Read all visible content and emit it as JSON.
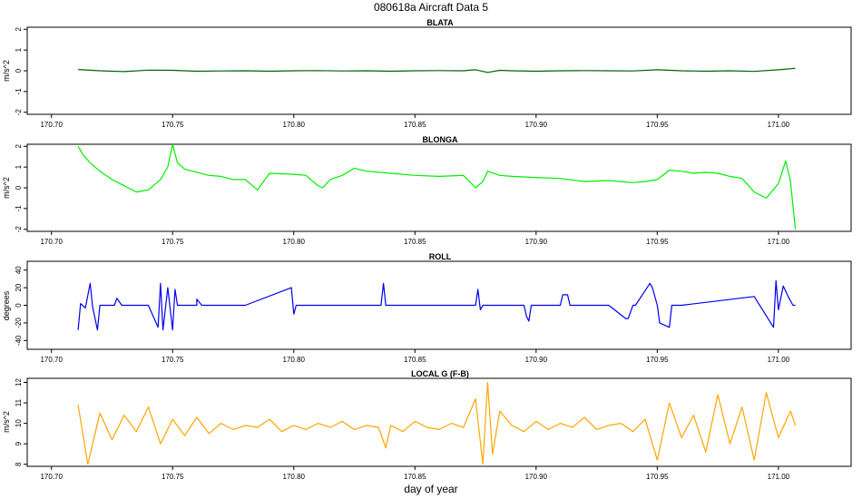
{
  "figure_title": "080618a   Aircraft Data 5",
  "xlabel": "day of year",
  "chart_data": [
    {
      "type": "line",
      "title": "BLATA",
      "ylabel": "m/s^2",
      "color": "#006400",
      "xlim": [
        170.69,
        171.03
      ],
      "ylim": [
        -2.1,
        2.1
      ],
      "xticks": [
        170.7,
        170.75,
        170.8,
        170.85,
        170.9,
        170.95,
        171.0
      ],
      "xtick_labels": [
        "170.70",
        "170.75",
        "170.80",
        "170.85",
        "170.90",
        "170.95",
        "171.00"
      ],
      "yticks": [
        -2,
        -1,
        0,
        1,
        2
      ],
      "ytick_labels": [
        "-2",
        "-1",
        "0",
        "1",
        "2"
      ],
      "series": [
        {
          "x": [
            170.711,
            170.72,
            170.73,
            170.74,
            170.75,
            170.76,
            170.77,
            170.78,
            170.79,
            170.8,
            170.81,
            170.82,
            170.83,
            170.84,
            170.85,
            170.86,
            170.87,
            170.875,
            170.88,
            170.885,
            170.89,
            170.9,
            170.91,
            170.92,
            170.93,
            170.94,
            170.95,
            170.96,
            170.97,
            170.98,
            170.99,
            171.0,
            171.007
          ],
          "y": [
            0.06,
            0.0,
            -0.04,
            0.03,
            0.02,
            -0.02,
            -0.01,
            0.0,
            -0.02,
            0.0,
            0.01,
            -0.01,
            0.0,
            -0.02,
            0.0,
            0.01,
            0.0,
            0.05,
            -0.08,
            0.02,
            0.0,
            -0.02,
            0.0,
            0.01,
            0.0,
            -0.01,
            0.05,
            0.0,
            -0.02,
            0.0,
            -0.03,
            0.05,
            0.12
          ]
        }
      ]
    },
    {
      "type": "line",
      "title": "BLONGA",
      "ylabel": "m/s^2",
      "color": "#00ee00",
      "xlim": [
        170.69,
        171.03
      ],
      "ylim": [
        -2.1,
        2.1
      ],
      "xticks": [
        170.7,
        170.75,
        170.8,
        170.85,
        170.9,
        170.95,
        171.0
      ],
      "xtick_labels": [
        "170.70",
        "170.75",
        "170.80",
        "170.85",
        "170.90",
        "170.95",
        "171.00"
      ],
      "yticks": [
        -2,
        -1,
        0,
        1,
        2
      ],
      "ytick_labels": [
        "-2",
        "-1",
        "0",
        "1",
        "2"
      ],
      "series": [
        {
          "x": [
            170.711,
            170.713,
            170.716,
            170.72,
            170.725,
            170.73,
            170.735,
            170.74,
            170.745,
            170.748,
            170.75,
            170.752,
            170.755,
            170.76,
            170.765,
            170.77,
            170.775,
            170.78,
            170.785,
            170.79,
            170.8,
            170.805,
            170.81,
            170.812,
            170.815,
            170.82,
            170.825,
            170.83,
            170.84,
            170.85,
            170.86,
            170.87,
            170.875,
            170.878,
            170.88,
            170.885,
            170.89,
            170.9,
            170.91,
            170.92,
            170.93,
            170.94,
            170.945,
            170.95,
            170.955,
            170.96,
            170.965,
            170.97,
            170.975,
            170.98,
            170.985,
            170.99,
            170.995,
            171.0,
            171.003,
            171.005,
            171.007
          ],
          "y": [
            2.0,
            1.6,
            1.2,
            0.8,
            0.4,
            0.1,
            -0.2,
            -0.1,
            0.4,
            1.0,
            2.1,
            1.2,
            0.9,
            0.75,
            0.6,
            0.55,
            0.4,
            0.4,
            -0.1,
            0.7,
            0.65,
            0.6,
            0.1,
            0.0,
            0.4,
            0.6,
            0.95,
            0.8,
            0.7,
            0.6,
            0.55,
            0.6,
            0.0,
            0.3,
            0.8,
            0.6,
            0.55,
            0.5,
            0.45,
            0.3,
            0.35,
            0.25,
            0.3,
            0.4,
            0.85,
            0.8,
            0.7,
            0.75,
            0.7,
            0.55,
            0.45,
            -0.2,
            -0.5,
            0.2,
            1.3,
            0.3,
            -2.0
          ]
        }
      ]
    },
    {
      "type": "line",
      "title": "ROLL",
      "ylabel": "degrees",
      "color": "#0000ee",
      "xlim": [
        170.69,
        171.03
      ],
      "ylim": [
        -50,
        50
      ],
      "xticks": [
        170.7,
        170.75,
        170.8,
        170.85,
        170.9,
        170.95,
        171.0
      ],
      "xtick_labels": [
        "170.70",
        "170.75",
        "170.80",
        "170.85",
        "170.90",
        "170.95",
        "171.00"
      ],
      "yticks": [
        -40,
        -20,
        0,
        20,
        40
      ],
      "ytick_labels": [
        "-40",
        "-20",
        "0",
        "20",
        "40"
      ],
      "series": [
        {
          "x": [
            170.711,
            170.712,
            170.714,
            170.716,
            170.717,
            170.719,
            170.72,
            170.726,
            170.727,
            170.729,
            170.74,
            170.744,
            170.745,
            170.746,
            170.748,
            170.75,
            170.751,
            170.752,
            170.76,
            170.76,
            170.762,
            170.78,
            170.799,
            170.8,
            170.801,
            170.81,
            170.836,
            170.837,
            170.838,
            170.85,
            170.875,
            170.876,
            170.877,
            170.878,
            170.895,
            170.896,
            170.897,
            170.898,
            170.91,
            170.911,
            170.913,
            170.914,
            170.915,
            170.93,
            170.937,
            170.938,
            170.94,
            170.941,
            170.947,
            170.948,
            170.95,
            170.951,
            170.955,
            170.956,
            170.958,
            170.96,
            170.99,
            170.998,
            170.999,
            171.0,
            171.002,
            171.004,
            171.006,
            171.007
          ],
          "y": [
            -28,
            2,
            -3,
            25,
            -2,
            -28,
            0,
            0,
            8,
            0,
            0,
            -25,
            25,
            -28,
            20,
            -28,
            18,
            0,
            0,
            7,
            0,
            0,
            20,
            -10,
            0,
            0,
            0,
            25,
            0,
            0,
            0,
            18,
            -5,
            0,
            0,
            -12,
            -18,
            0,
            0,
            12,
            12,
            0,
            0,
            0,
            -15,
            -15,
            0,
            0,
            25,
            20,
            0,
            -20,
            -25,
            0,
            0,
            0,
            10,
            -25,
            28,
            -5,
            22,
            10,
            0,
            0
          ]
        }
      ]
    },
    {
      "type": "line",
      "title": "LOCAL G (F-B)",
      "ylabel": "m/s^2",
      "color": "#ffa500",
      "xlim": [
        170.69,
        171.03
      ],
      "ylim": [
        7.9,
        12.2
      ],
      "xticks": [
        170.7,
        170.75,
        170.8,
        170.85,
        170.9,
        170.95,
        171.0
      ],
      "xtick_labels": [
        "170.70",
        "170.75",
        "170.80",
        "170.85",
        "170.90",
        "170.95",
        "171.00"
      ],
      "yticks": [
        8,
        9,
        10,
        11,
        12
      ],
      "ytick_labels": [
        "8",
        "9",
        "10",
        "11",
        "12"
      ],
      "series": [
        {
          "x": [
            170.711,
            170.715,
            170.72,
            170.725,
            170.73,
            170.735,
            170.74,
            170.745,
            170.75,
            170.755,
            170.76,
            170.765,
            170.77,
            170.775,
            170.78,
            170.785,
            170.79,
            170.795,
            170.8,
            170.805,
            170.81,
            170.815,
            170.82,
            170.825,
            170.83,
            170.835,
            170.838,
            170.84,
            170.845,
            170.85,
            170.855,
            170.86,
            170.865,
            170.87,
            170.875,
            170.878,
            170.88,
            170.882,
            170.885,
            170.89,
            170.895,
            170.9,
            170.905,
            170.91,
            170.915,
            170.92,
            170.925,
            170.93,
            170.935,
            170.94,
            170.945,
            170.95,
            170.955,
            170.96,
            170.965,
            170.97,
            170.975,
            170.98,
            170.985,
            170.99,
            170.995,
            171.0,
            171.005,
            171.007
          ],
          "y": [
            10.9,
            8.0,
            10.5,
            9.2,
            10.4,
            9.6,
            10.8,
            9.0,
            10.2,
            9.4,
            10.3,
            9.5,
            10.0,
            9.7,
            9.9,
            9.8,
            10.2,
            9.6,
            9.9,
            9.7,
            10.0,
            9.8,
            10.1,
            9.7,
            9.9,
            9.8,
            8.8,
            9.9,
            9.6,
            10.1,
            9.8,
            9.7,
            10.0,
            9.8,
            11.2,
            8.0,
            12.0,
            8.5,
            10.6,
            9.9,
            9.6,
            10.1,
            9.7,
            10.0,
            9.8,
            10.3,
            9.7,
            9.9,
            10.0,
            9.6,
            10.2,
            8.2,
            11.0,
            9.3,
            10.4,
            8.6,
            11.4,
            9.0,
            10.8,
            8.2,
            11.5,
            9.3,
            10.6,
            9.9
          ]
        }
      ]
    }
  ]
}
